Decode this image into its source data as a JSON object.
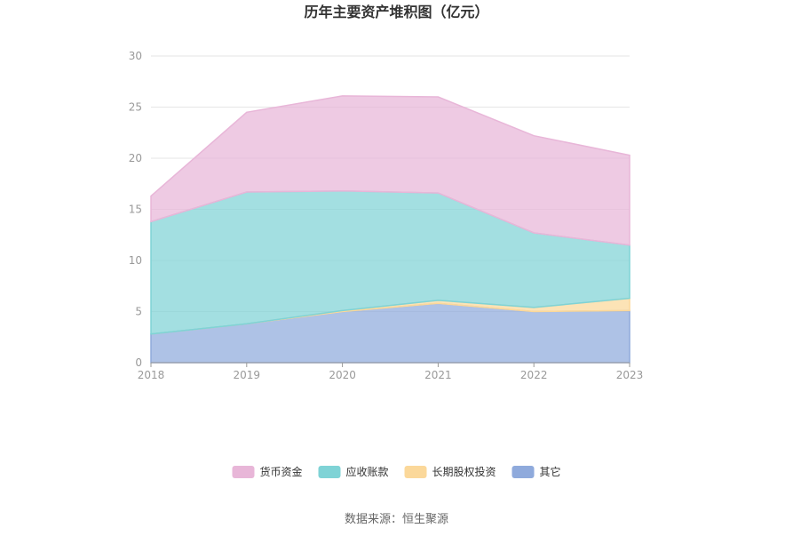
{
  "chart_data": {
    "type": "area",
    "stacked": true,
    "title": "历年主要资产堆积图（亿元）",
    "x": [
      "2018",
      "2019",
      "2020",
      "2021",
      "2022",
      "2023"
    ],
    "series": [
      {
        "name": "其它",
        "color": "#8faadc",
        "values": [
          2.8,
          3.8,
          5.0,
          5.8,
          5.0,
          5.1
        ]
      },
      {
        "name": "长期股权投资",
        "color": "#fbd89a",
        "values": [
          0.0,
          0.0,
          0.1,
          0.3,
          0.4,
          1.2
        ]
      },
      {
        "name": "应收账款",
        "color": "#7fd3d6",
        "values": [
          11.0,
          12.9,
          11.7,
          10.5,
          7.3,
          5.2
        ]
      },
      {
        "name": "货币资金",
        "color": "#e8b6d8",
        "values": [
          2.5,
          7.8,
          9.3,
          9.4,
          9.5,
          8.8
        ]
      }
    ],
    "ylim": [
      0,
      30
    ],
    "yticks": [
      0,
      5,
      10,
      15,
      20,
      25,
      30
    ],
    "grid": true,
    "legend_position": "bottom"
  },
  "legend_order": [
    "货币资金",
    "应收账款",
    "长期股权投资",
    "其它"
  ],
  "source_text": "数据来源：恒生聚源"
}
